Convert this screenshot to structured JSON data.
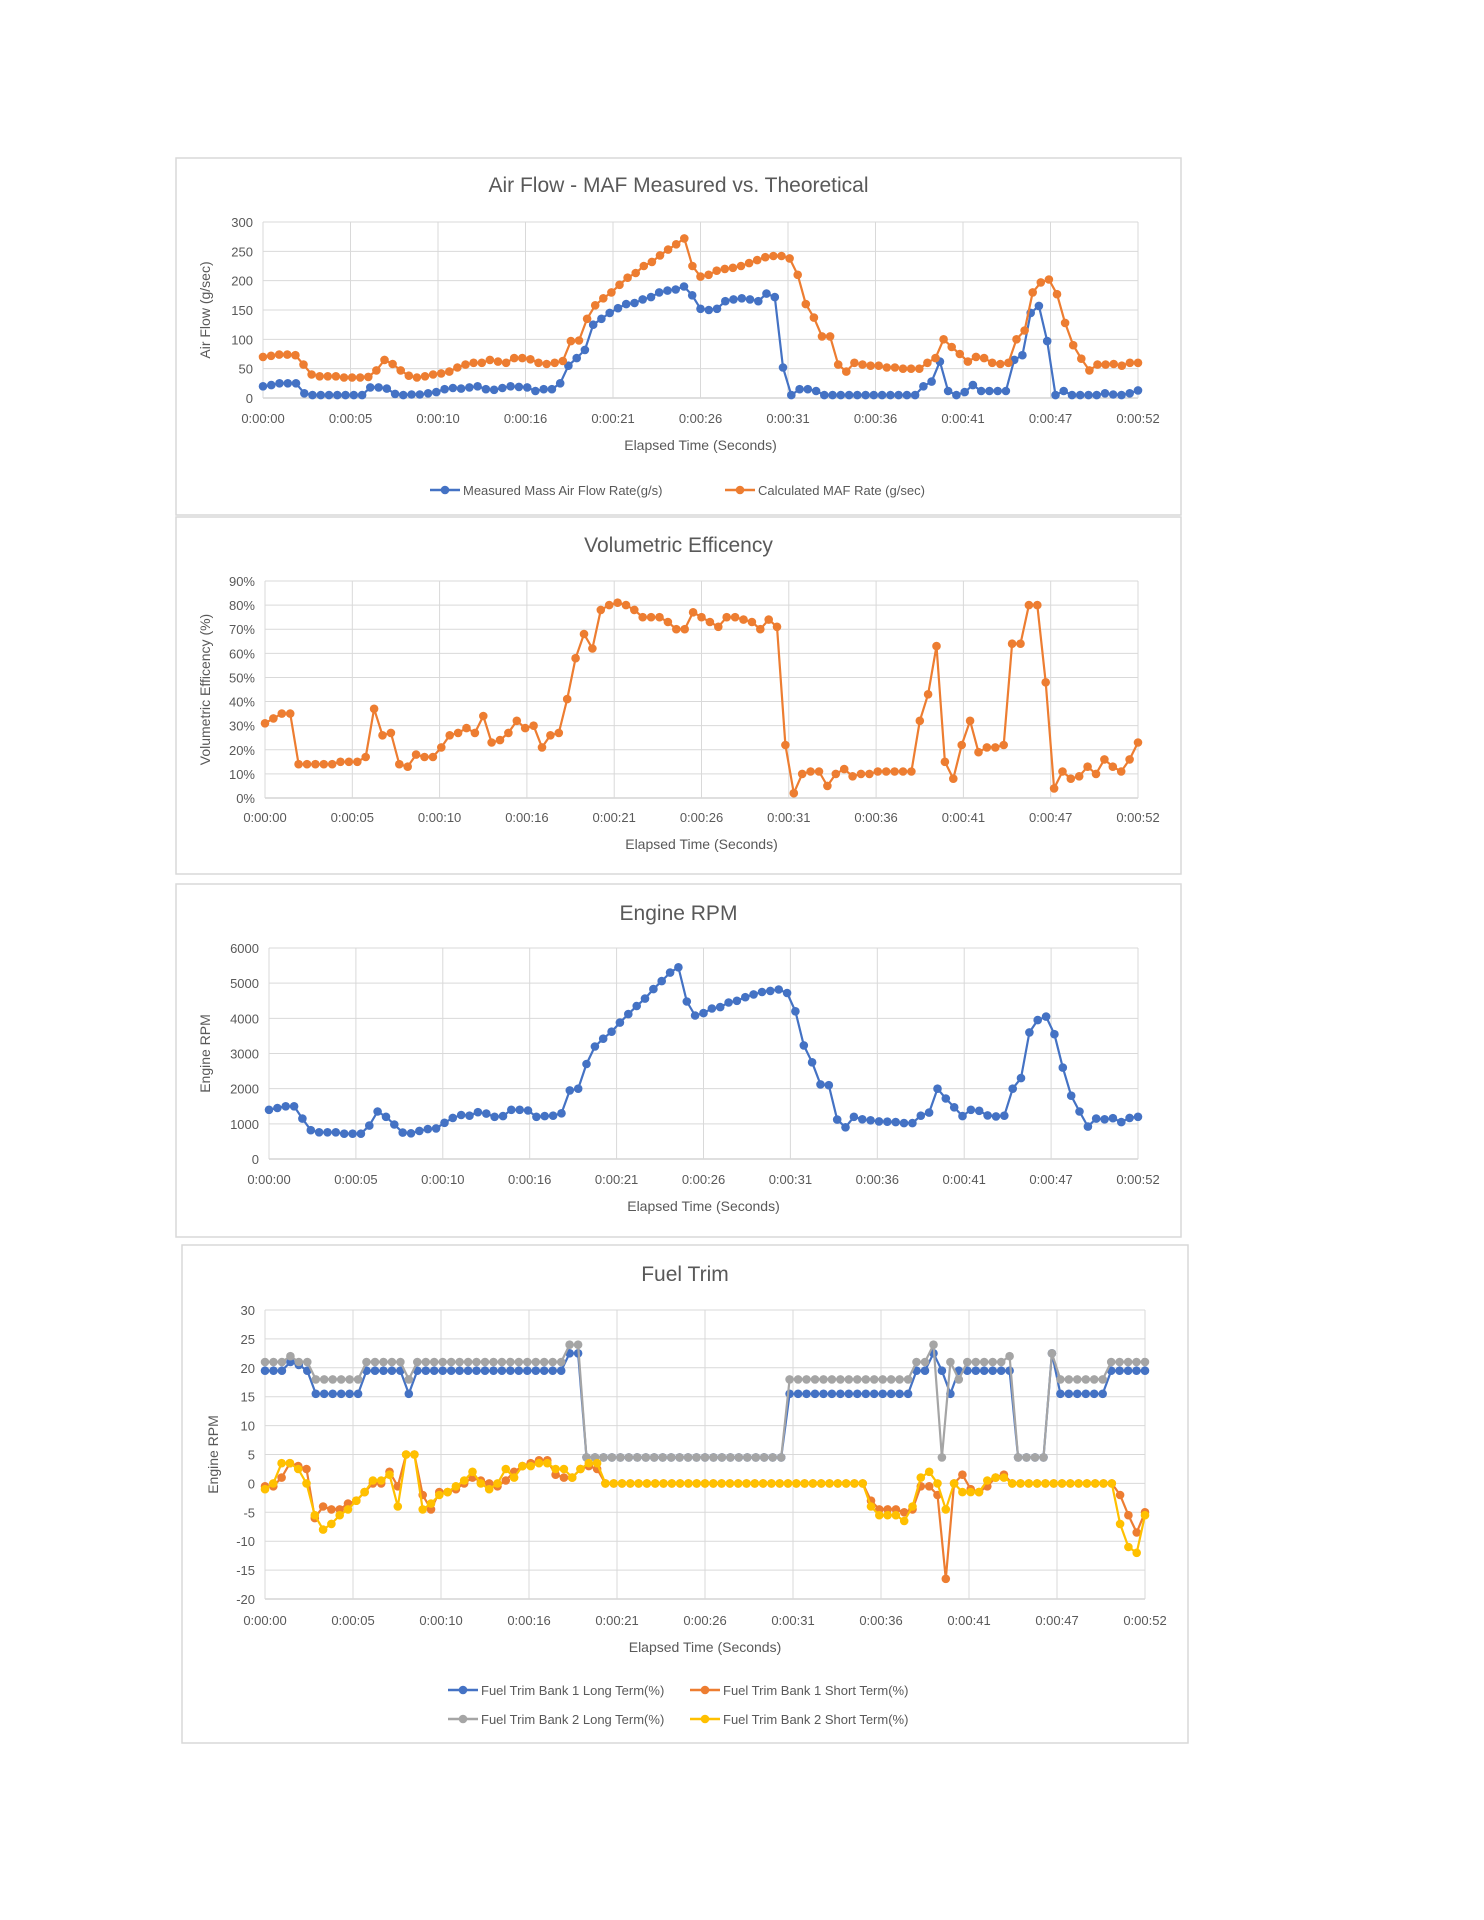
{
  "chart_data": [
    {
      "type": "line",
      "title": "Air Flow - MAF Measured vs. Theoretical",
      "xlabel": "Elapsed Time (Seconds)",
      "ylabel": "Air Flow (g/sec)",
      "xlim": [
        0,
        52
      ],
      "ylim": [
        0,
        300
      ],
      "ytick_labels": [
        "0",
        "50",
        "100",
        "150",
        "200",
        "250",
        "300"
      ],
      "xtick_labels": [
        "0:00:00",
        "0:00:05",
        "0:00:10",
        "0:00:16",
        "0:00:21",
        "0:00:26",
        "0:00:31",
        "0:00:36",
        "0:00:41",
        "0:00:47",
        "0:00:52"
      ],
      "grid": true,
      "legend": "bottom",
      "series": [
        {
          "name": "Measured Mass Air Flow Rate(g/s)",
          "color": "#4472C4",
          "values": [
            20,
            22,
            25,
            25,
            25,
            8,
            5,
            5,
            5,
            5,
            5,
            5,
            5,
            18,
            18,
            16,
            7,
            5,
            6,
            6,
            8,
            10,
            15,
            17,
            16,
            18,
            20,
            15,
            14,
            17,
            20,
            19,
            18,
            12,
            15,
            15,
            25,
            55,
            68,
            82,
            125,
            135,
            145,
            153,
            160,
            162,
            168,
            172,
            180,
            183,
            185,
            190,
            175,
            152,
            150,
            152,
            165,
            168,
            170,
            168,
            165,
            178,
            172,
            52,
            5,
            15,
            15,
            12,
            5,
            5,
            5,
            5,
            5,
            5,
            5,
            5,
            5,
            5,
            5,
            5,
            20,
            28,
            62,
            12,
            5,
            10,
            22,
            12,
            12,
            12,
            12,
            65,
            73,
            145,
            157,
            97,
            5,
            12,
            5,
            5,
            5,
            5,
            8,
            6,
            5,
            8,
            13
          ]
        },
        {
          "name": "Calculated MAF Rate (g/sec)",
          "color": "#ED7D31",
          "values": [
            70,
            72,
            74,
            74,
            73,
            57,
            40,
            37,
            37,
            37,
            35,
            35,
            35,
            36,
            47,
            65,
            58,
            47,
            38,
            35,
            37,
            40,
            42,
            45,
            52,
            57,
            60,
            60,
            65,
            62,
            60,
            68,
            68,
            66,
            60,
            58,
            60,
            63,
            97,
            98,
            135,
            158,
            170,
            180,
            193,
            205,
            213,
            225,
            232,
            243,
            253,
            262,
            272,
            225,
            207,
            210,
            217,
            220,
            222,
            225,
            230,
            235,
            240,
            242,
            242,
            238,
            210,
            160,
            137,
            105,
            105,
            57,
            45,
            60,
            57,
            55,
            55,
            52,
            52,
            50,
            50,
            50,
            60,
            68,
            100,
            87,
            75,
            62,
            70,
            68,
            60,
            58,
            60,
            100,
            115,
            180,
            197,
            202,
            177,
            128,
            90,
            67,
            47,
            57,
            57,
            58,
            55,
            60,
            60
          ]
        }
      ]
    },
    {
      "type": "line",
      "title": "Volumetric Efficency",
      "xlabel": "Elapsed Time (Seconds)",
      "ylabel": "Volumetric Efficency (%)",
      "xlim": [
        0,
        52
      ],
      "ylim": [
        0,
        90
      ],
      "ytick_labels": [
        "0%",
        "10%",
        "20%",
        "30%",
        "40%",
        "50%",
        "60%",
        "70%",
        "80%",
        "90%"
      ],
      "xtick_labels": [
        "0:00:00",
        "0:00:05",
        "0:00:10",
        "0:00:16",
        "0:00:21",
        "0:00:26",
        "0:00:31",
        "0:00:36",
        "0:00:41",
        "0:00:47",
        "0:00:52"
      ],
      "grid": true,
      "legend": "none",
      "series": [
        {
          "name": "Volumetric Efficency",
          "color": "#ED7D31",
          "values": [
            31,
            33,
            35,
            35,
            14,
            14,
            14,
            14,
            14,
            15,
            15,
            15,
            17,
            37,
            26,
            27,
            14,
            13,
            18,
            17,
            17,
            21,
            26,
            27,
            29,
            27,
            34,
            23,
            24,
            27,
            32,
            29,
            30,
            21,
            26,
            27,
            41,
            58,
            68,
            62,
            78,
            80,
            81,
            80,
            78,
            75,
            75,
            75,
            73,
            70,
            70,
            77,
            75,
            73,
            71,
            75,
            75,
            74,
            73,
            70,
            74,
            71,
            22,
            2,
            10,
            11,
            11,
            5,
            10,
            12,
            9,
            10,
            10,
            11,
            11,
            11,
            11,
            11,
            32,
            43,
            63,
            15,
            8,
            22,
            32,
            19,
            21,
            21,
            22,
            64,
            64,
            80,
            80,
            48,
            4,
            11,
            8,
            9,
            13,
            10,
            16,
            13,
            11,
            16,
            23
          ]
        }
      ]
    },
    {
      "type": "line",
      "title": "Engine RPM",
      "xlabel": "Elapsed Time (Seconds)",
      "ylabel": "Engine RPM",
      "xlim": [
        0,
        52
      ],
      "ylim": [
        0,
        6000
      ],
      "ytick_labels": [
        "0",
        "1000",
        "2000",
        "3000",
        "4000",
        "5000",
        "6000"
      ],
      "xtick_labels": [
        "0:00:00",
        "0:00:05",
        "0:00:10",
        "0:00:16",
        "0:00:21",
        "0:00:26",
        "0:00:31",
        "0:00:36",
        "0:00:41",
        "0:00:47",
        "0:00:52"
      ],
      "grid": true,
      "legend": "none",
      "series": [
        {
          "name": "Engine RPM",
          "color": "#4472C4",
          "values": [
            1400,
            1450,
            1500,
            1500,
            1150,
            820,
            760,
            760,
            760,
            720,
            720,
            720,
            950,
            1350,
            1200,
            980,
            750,
            730,
            800,
            850,
            870,
            1030,
            1170,
            1250,
            1230,
            1330,
            1290,
            1200,
            1220,
            1400,
            1400,
            1380,
            1200,
            1220,
            1230,
            1300,
            1950,
            2000,
            2700,
            3200,
            3420,
            3620,
            3880,
            4120,
            4350,
            4560,
            4830,
            5060,
            5300,
            5450,
            4480,
            4080,
            4150,
            4280,
            4320,
            4450,
            4500,
            4600,
            4680,
            4750,
            4780,
            4820,
            4720,
            4200,
            3230,
            2750,
            2120,
            2100,
            1120,
            900,
            1200,
            1130,
            1100,
            1070,
            1060,
            1050,
            1020,
            1020,
            1230,
            1320,
            2000,
            1720,
            1470,
            1220,
            1400,
            1370,
            1240,
            1210,
            1230,
            2000,
            2300,
            3600,
            3950,
            4050,
            3550,
            2600,
            1800,
            1350,
            920,
            1150,
            1130,
            1160,
            1050,
            1170,
            1200
          ]
        }
      ]
    },
    {
      "type": "line",
      "title": "Fuel Trim",
      "xlabel": "Elapsed Time (Seconds)",
      "ylabel": "Engine RPM",
      "xlim": [
        0,
        52
      ],
      "ylim": [
        -20,
        30
      ],
      "ytick_labels": [
        "-20",
        "-15",
        "-10",
        "-5",
        "0",
        "5",
        "10",
        "15",
        "20",
        "25",
        "30"
      ],
      "xtick_labels": [
        "0:00:00",
        "0:00:05",
        "0:00:10",
        "0:00:16",
        "0:00:21",
        "0:00:26",
        "0:00:31",
        "0:00:36",
        "0:00:41",
        "0:00:47",
        "0:00:52"
      ],
      "grid": true,
      "legend": "bottom",
      "series": [
        {
          "name": "Fuel Trim Bank 1 Long Term(%)",
          "color": "#4472C4",
          "values": [
            19.5,
            19.5,
            19.5,
            21,
            20.5,
            19.5,
            15.5,
            15.5,
            15.5,
            15.5,
            15.5,
            15.5,
            19.5,
            19.5,
            19.5,
            19.5,
            19.5,
            15.5,
            19.5,
            19.5,
            19.5,
            19.5,
            19.5,
            19.5,
            19.5,
            19.5,
            19.5,
            19.5,
            19.5,
            19.5,
            19.5,
            19.5,
            19.5,
            19.5,
            19.5,
            19.5,
            22.5,
            22.5,
            4.5,
            4.5,
            4.5,
            4.5,
            4.5,
            4.5,
            4.5,
            4.5,
            4.5,
            4.5,
            4.5,
            4.5,
            4.5,
            4.5,
            4.5,
            4.5,
            4.5,
            4.5,
            4.5,
            4.5,
            4.5,
            4.5,
            4.5,
            4.5,
            15.5,
            15.5,
            15.5,
            15.5,
            15.5,
            15.5,
            15.5,
            15.5,
            15.5,
            15.5,
            15.5,
            15.5,
            15.5,
            15.5,
            15.5,
            19.5,
            19.5,
            22.5,
            19.5,
            15.5,
            19.5,
            19.5,
            19.5,
            19.5,
            19.5,
            19.5,
            19.5,
            4.5,
            4.5,
            4.5,
            4.5,
            22.5,
            15.5,
            15.5,
            15.5,
            15.5,
            15.5,
            15.5,
            19.5,
            19.5,
            19.5,
            19.5,
            19.5
          ]
        },
        {
          "name": "Fuel Trim Bank 1 Short Term(%)",
          "color": "#ED7D31",
          "values": [
            -0.5,
            -0.5,
            1,
            3.5,
            3,
            2.5,
            -6,
            -4,
            -4.5,
            -4.5,
            -3.5,
            -3,
            -1.5,
            0,
            0,
            2,
            -0.5,
            5,
            5,
            -2,
            -4.5,
            -1.5,
            -1.5,
            -1,
            0,
            1,
            0.5,
            0,
            -0.5,
            0.5,
            2,
            3,
            3.5,
            4,
            4,
            1.5,
            1,
            1,
            2.5,
            3,
            2.5,
            0,
            0,
            0,
            0,
            0,
            0,
            0,
            0,
            0,
            0,
            0,
            0,
            0,
            0,
            0,
            0,
            0,
            0,
            0,
            0,
            0,
            0,
            0,
            0,
            0,
            0,
            0,
            0,
            0,
            0,
            0,
            0,
            -3,
            -4.5,
            -4.5,
            -4.5,
            -5,
            -4.5,
            -0.5,
            -0.5,
            -2,
            -16.5,
            0,
            1.5,
            -1,
            -1.5,
            -0.5,
            1,
            1.5,
            0,
            0,
            0,
            0,
            0,
            0,
            0,
            0,
            0,
            0,
            0,
            0,
            0,
            -2,
            -5.5,
            -8.5,
            -5
          ]
        },
        {
          "name": "Fuel Trim Bank 2 Long Term(%)",
          "color": "#A5A5A5",
          "values": [
            21,
            21,
            21,
            22,
            21,
            21,
            18,
            18,
            18,
            18,
            18,
            18,
            21,
            21,
            21,
            21,
            21,
            18,
            21,
            21,
            21,
            21,
            21,
            21,
            21,
            21,
            21,
            21,
            21,
            21,
            21,
            21,
            21,
            21,
            21,
            21,
            24,
            24,
            4.5,
            4.5,
            4.5,
            4.5,
            4.5,
            4.5,
            4.5,
            4.5,
            4.5,
            4.5,
            4.5,
            4.5,
            4.5,
            4.5,
            4.5,
            4.5,
            4.5,
            4.5,
            4.5,
            4.5,
            4.5,
            4.5,
            4.5,
            4.5,
            18,
            18,
            18,
            18,
            18,
            18,
            18,
            18,
            18,
            18,
            18,
            18,
            18,
            18,
            18,
            21,
            21,
            24,
            4.5,
            21,
            18,
            21,
            21,
            21,
            21,
            21,
            22,
            4.5,
            4.5,
            4.5,
            4.5,
            22.5,
            18,
            18,
            18,
            18,
            18,
            18,
            21,
            21,
            21,
            21,
            21
          ]
        },
        {
          "name": "Fuel Trim Bank 2 Short Term(%)",
          "color": "#FFC000",
          "values": [
            -1,
            0,
            3.5,
            3.5,
            2.5,
            0,
            -5.5,
            -8,
            -7,
            -5.5,
            -4.5,
            -3,
            -1.5,
            0.5,
            0.5,
            1.5,
            -4,
            5,
            5,
            -4.5,
            -3.5,
            -2,
            -1.5,
            -0.5,
            0.5,
            2,
            0,
            -1,
            0,
            2.5,
            1,
            3,
            3,
            3.5,
            3.5,
            2.5,
            2.5,
            1,
            2.5,
            3.5,
            3.5,
            0,
            0,
            0,
            0,
            0,
            0,
            0,
            0,
            0,
            0,
            0,
            0,
            0,
            0,
            0,
            0,
            0,
            0,
            0,
            0,
            0,
            0,
            0,
            0,
            0,
            0,
            0,
            0,
            0,
            0,
            0,
            0,
            -4,
            -5.5,
            -5.5,
            -5.5,
            -6.5,
            -4,
            1,
            2,
            0,
            -4.5,
            0,
            -1.5,
            -1.5,
            -1.5,
            0.5,
            1,
            1,
            0,
            0,
            0,
            0,
            0,
            0,
            0,
            0,
            0,
            0,
            0,
            0,
            0,
            -7,
            -11,
            -12,
            -5.5
          ]
        }
      ]
    }
  ]
}
